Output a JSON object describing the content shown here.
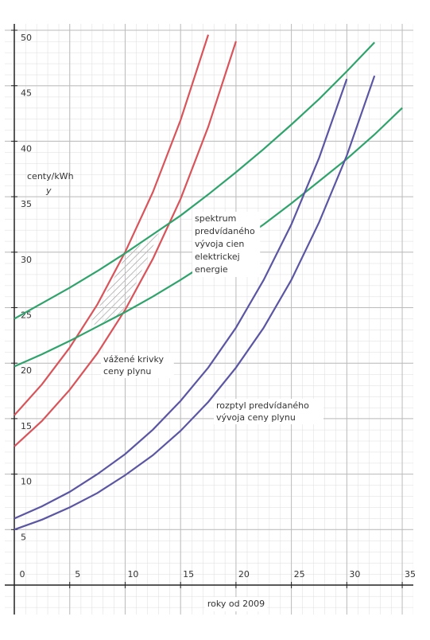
{
  "chart_data": {
    "type": "line",
    "y_label": [
      "centy/kWh",
      "y"
    ],
    "x_label": "roky od 2009",
    "annotations": [
      [
        "spektrum",
        "predvídaného",
        "vývoja cien",
        "elektrickej",
        "energie"
      ],
      [
        "vážené krivky",
        "ceny plynu"
      ],
      [
        "rozptyl predvídaného",
        "vývoja ceny plynu"
      ]
    ],
    "x": [
      0,
      2.5,
      5,
      7.5,
      10,
      12.5,
      15,
      17.5,
      20,
      22.5,
      25,
      27.5,
      30,
      32.5,
      35
    ],
    "series": [
      {
        "color": "#d9545a",
        "values": [
          15.3,
          18.1,
          21.4,
          25.3,
          30.0,
          35.4,
          41.9,
          49.6,
          null,
          null,
          null,
          null,
          null,
          null,
          null
        ]
      },
      {
        "color": "#d9545a",
        "values": [
          12.5,
          14.8,
          17.6,
          20.9,
          24.8,
          29.4,
          34.8,
          41.3,
          49.0,
          null,
          null,
          null,
          null,
          null,
          null
        ]
      },
      {
        "color": "#2ea36b",
        "values": [
          24,
          25.4,
          26.8,
          28.3,
          29.9,
          31.6,
          33.3,
          35.2,
          37.2,
          39.3,
          41.5,
          43.8,
          46.3,
          48.9,
          null
        ]
      },
      {
        "color": "#2ea36b",
        "values": [
          19.7,
          20.8,
          22.0,
          23.3,
          24.6,
          26.0,
          27.5,
          29.1,
          30.8,
          32.5,
          34.4,
          36.4,
          38.4,
          40.6,
          43.0
        ]
      },
      {
        "color": "#5b56a3",
        "values": [
          6,
          7.1,
          8.4,
          10.0,
          11.8,
          14.0,
          16.6,
          19.6,
          23.2,
          27.5,
          32.5,
          38.5,
          45.6,
          null,
          null
        ]
      },
      {
        "color": "#5b56a3",
        "values": [
          5,
          5.9,
          7.0,
          8.3,
          9.9,
          11.7,
          13.9,
          16.5,
          19.6,
          23.2,
          27.5,
          32.7,
          38.7,
          45.9,
          null
        ]
      }
    ],
    "xlim": [
      0,
      36
    ],
    "ylim": [
      0,
      50
    ],
    "xticks": [
      0,
      5,
      10,
      15,
      20,
      25,
      30,
      35
    ],
    "yticks": [
      5,
      10,
      15,
      20,
      25,
      30,
      35,
      40,
      45,
      50
    ],
    "grid": true
  }
}
